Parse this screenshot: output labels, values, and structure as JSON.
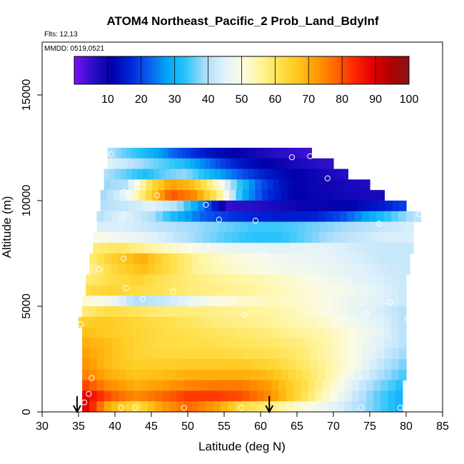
{
  "chart_data": {
    "type": "heatmap",
    "title": "ATOM4 Northeast_Pacific_2 Prob_Land_BdyInf",
    "flights_label": "Flts: 12,13",
    "dates_label": "MMDD: 0519,0521",
    "xlabel": "Latitude (deg N)",
    "ylabel": "Altitude (m)",
    "xlim": [
      30,
      85
    ],
    "ylim": [
      0,
      17500
    ],
    "x_ticks": [
      "30",
      "35",
      "40",
      "45",
      "50",
      "55",
      "60",
      "65",
      "70",
      "75",
      "80",
      "85"
    ],
    "y_ticks": [
      "0",
      "5000",
      "10000",
      "15000"
    ],
    "colorbar": {
      "range": [
        0,
        100
      ],
      "ticks": [
        "10",
        "20",
        "30",
        "40",
        "50",
        "60",
        "70",
        "80",
        "90",
        "100"
      ],
      "colors": [
        "#7a12f2",
        "#2a0fc8",
        "#0000a8",
        "#0024d8",
        "#0a5df0",
        "#00a6f7",
        "#2cc4fa",
        "#a8dcfb",
        "#def1fb",
        "#fbfbe6",
        "#fff59e",
        "#ffe14d",
        "#ffc81e",
        "#ff9c00",
        "#ff6a00",
        "#ff2a00",
        "#e60000",
        "#b00000",
        "#8a1515"
      ]
    },
    "altitude_bands": [
      {
        "alt": [
          12000,
          12500
        ],
        "lat": [
          39,
          67
        ],
        "values": [
          40,
          36,
          32,
          28,
          22,
          18,
          14,
          12,
          10,
          8,
          6,
          5,
          4
        ]
      },
      {
        "alt": [
          11500,
          12000
        ],
        "lat": [
          39,
          70
        ],
        "values": [
          45,
          42,
          38,
          35,
          32,
          26,
          20,
          15,
          12,
          10,
          8,
          6,
          5
        ]
      },
      {
        "alt": [
          11000,
          11500
        ],
        "lat": [
          38.5,
          72
        ],
        "values": [
          40,
          36,
          32,
          36,
          38,
          32,
          26,
          20,
          15,
          12,
          10,
          8,
          6
        ]
      },
      {
        "alt": [
          10500,
          11000
        ],
        "lat": [
          38.5,
          75
        ],
        "values": [
          38,
          40,
          60,
          72,
          68,
          55,
          35,
          22,
          14,
          10,
          9,
          8,
          7
        ]
      },
      {
        "alt": [
          10000,
          10500
        ],
        "lat": [
          38,
          77
        ],
        "values": [
          38,
          45,
          62,
          80,
          74,
          58,
          30,
          18,
          12,
          10,
          9,
          8,
          8
        ]
      },
      {
        "alt": [
          9500,
          10000
        ],
        "lat": [
          38,
          80
        ],
        "values": [
          40,
          42,
          45,
          40,
          25,
          5,
          6,
          8,
          10,
          10,
          12,
          15,
          20
        ]
      },
      {
        "alt": [
          9000,
          9500
        ],
        "lat": [
          37.5,
          82
        ],
        "values": [
          40,
          45,
          40,
          30,
          22,
          18,
          16,
          15,
          16,
          20,
          28,
          35,
          42
        ]
      },
      {
        "alt": [
          8500,
          9000
        ],
        "lat": [
          37.5,
          81
        ],
        "values": [
          44,
          44,
          42,
          40,
          38,
          36,
          34,
          34,
          36,
          38,
          40,
          42,
          44
        ]
      },
      {
        "alt": [
          8000,
          8500
        ],
        "lat": [
          37,
          81
        ],
        "values": [
          50,
          48,
          46,
          42,
          38,
          35,
          33,
          33,
          36,
          40,
          42,
          44,
          44
        ]
      },
      {
        "alt": [
          7500,
          8000
        ],
        "lat": [
          37,
          81
        ],
        "values": [
          58,
          60,
          56,
          52,
          49,
          47,
          46,
          45,
          46,
          45,
          43,
          42,
          42
        ]
      },
      {
        "alt": [
          7000,
          7500
        ],
        "lat": [
          36.5,
          80.5
        ],
        "values": [
          58,
          66,
          70,
          62,
          56,
          52,
          50,
          48,
          47,
          46,
          44,
          42,
          42
        ]
      },
      {
        "alt": [
          6500,
          7000
        ],
        "lat": [
          36.5,
          80.5
        ],
        "values": [
          56,
          64,
          68,
          62,
          56,
          53,
          51,
          49,
          48,
          47,
          45,
          43,
          42
        ]
      },
      {
        "alt": [
          6000,
          6500
        ],
        "lat": [
          36,
          80
        ],
        "values": [
          58,
          62,
          64,
          60,
          58,
          56,
          55,
          53,
          51,
          49,
          46,
          44,
          42
        ]
      },
      {
        "alt": [
          5500,
          6000
        ],
        "lat": [
          36,
          80
        ],
        "values": [
          62,
          64,
          62,
          60,
          58,
          57,
          56,
          54,
          52,
          50,
          48,
          45,
          42
        ]
      },
      {
        "alt": [
          5000,
          5500
        ],
        "lat": [
          35.5,
          80
        ],
        "values": [
          52,
          48,
          40,
          42,
          46,
          50,
          52,
          53,
          52,
          50,
          47,
          45,
          42
        ]
      },
      {
        "alt": [
          4500,
          5000
        ],
        "lat": [
          35.5,
          80
        ],
        "values": [
          58,
          62,
          60,
          58,
          58,
          57,
          56,
          55,
          53,
          50,
          47,
          44,
          40
        ]
      },
      {
        "alt": [
          4000,
          4500
        ],
        "lat": [
          35,
          80
        ],
        "values": [
          65,
          66,
          64,
          62,
          60,
          58,
          57,
          56,
          54,
          52,
          48,
          45,
          40
        ]
      },
      {
        "alt": [
          3500,
          4000
        ],
        "lat": [
          35.5,
          80
        ],
        "values": [
          68,
          66,
          64,
          62,
          61,
          60,
          59,
          58,
          56,
          54,
          50,
          46,
          40
        ]
      },
      {
        "alt": [
          3000,
          3500
        ],
        "lat": [
          35.5,
          80
        ],
        "values": [
          70,
          68,
          64,
          62,
          62,
          61,
          60,
          59,
          58,
          55,
          50,
          45,
          40
        ]
      },
      {
        "alt": [
          2500,
          3000
        ],
        "lat": [
          35.5,
          80
        ],
        "values": [
          72,
          68,
          64,
          63,
          63,
          63,
          62,
          61,
          59,
          55,
          50,
          44,
          38
        ]
      },
      {
        "alt": [
          2000,
          2500
        ],
        "lat": [
          35.5,
          80
        ],
        "values": [
          74,
          68,
          65,
          65,
          66,
          66,
          66,
          64,
          60,
          56,
          50,
          42,
          36
        ]
      },
      {
        "alt": [
          1500,
          2000
        ],
        "lat": [
          35.5,
          80
        ],
        "values": [
          76,
          70,
          67,
          68,
          70,
          70,
          70,
          68,
          62,
          56,
          48,
          40,
          34
        ]
      },
      {
        "alt": [
          1000,
          1500
        ],
        "lat": [
          35.5,
          79.5
        ],
        "values": [
          82,
          74,
          70,
          72,
          75,
          76,
          76,
          72,
          64,
          56,
          46,
          38,
          32
        ]
      },
      {
        "alt": [
          500,
          1000
        ],
        "lat": [
          35.5,
          79.5
        ],
        "values": [
          90,
          80,
          74,
          78,
          82,
          82,
          80,
          74,
          64,
          54,
          44,
          36,
          30
        ]
      },
      {
        "alt": [
          0,
          500
        ],
        "lat": [
          35.5,
          79.5
        ],
        "values": [
          92,
          70,
          62,
          72,
          78,
          72,
          62,
          58,
          52,
          48,
          42,
          36,
          30
        ]
      }
    ],
    "sample_points": [
      {
        "lat": 39.5,
        "alt": 12200
      },
      {
        "lat": 64.3,
        "alt": 12050
      },
      {
        "lat": 66.8,
        "alt": 12100
      },
      {
        "lat": 69.2,
        "alt": 11050
      },
      {
        "lat": 41.2,
        "alt": 10400
      },
      {
        "lat": 45.8,
        "alt": 10250
      },
      {
        "lat": 52.5,
        "alt": 9800
      },
      {
        "lat": 54.3,
        "alt": 9100
      },
      {
        "lat": 59.3,
        "alt": 9050
      },
      {
        "lat": 76.3,
        "alt": 8900
      },
      {
        "lat": 81.8,
        "alt": 9350
      },
      {
        "lat": 60.3,
        "alt": 7450
      },
      {
        "lat": 41.2,
        "alt": 7250
      },
      {
        "lat": 37.8,
        "alt": 6750
      },
      {
        "lat": 72.2,
        "alt": 6200
      },
      {
        "lat": 41.5,
        "alt": 5850
      },
      {
        "lat": 48.0,
        "alt": 5700
      },
      {
        "lat": 43.8,
        "alt": 5350
      },
      {
        "lat": 50.5,
        "alt": 5100
      },
      {
        "lat": 55.8,
        "alt": 5150
      },
      {
        "lat": 77.8,
        "alt": 5200
      },
      {
        "lat": 74.5,
        "alt": 4650
      },
      {
        "lat": 57.8,
        "alt": 4600
      },
      {
        "lat": 80.2,
        "alt": 4400
      },
      {
        "lat": 35.3,
        "alt": 4150
      },
      {
        "lat": 36.8,
        "alt": 1600
      },
      {
        "lat": 36.4,
        "alt": 850
      },
      {
        "lat": 35.8,
        "alt": 450
      },
      {
        "lat": 40.8,
        "alt": 200
      },
      {
        "lat": 42.8,
        "alt": 200
      },
      {
        "lat": 49.5,
        "alt": 200
      },
      {
        "lat": 57.3,
        "alt": 200
      },
      {
        "lat": 73.8,
        "alt": 200
      },
      {
        "lat": 79.2,
        "alt": 200
      }
    ],
    "arrows_lat": [
      34.8,
      61.2
    ],
    "grid": false,
    "colorbar_placement": "top-inside"
  }
}
